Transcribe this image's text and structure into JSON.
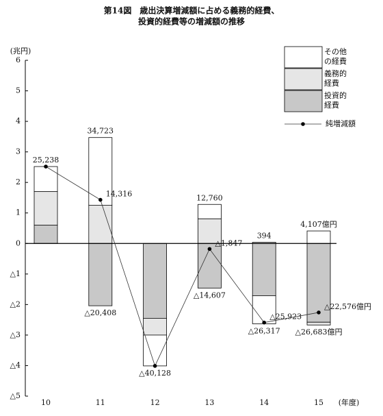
{
  "chart_data": {
    "type": "stacked-bar-line",
    "title": [
      "第14図　歳出決算増減額に占める義務的経費、",
      "投資的経費等の増減額の推移"
    ],
    "y_unit": "(兆円)",
    "x_unit": "(年度)",
    "categories": [
      "10",
      "11",
      "12",
      "13",
      "14",
      "15"
    ],
    "ylim": [
      -5,
      6
    ],
    "yticks": [
      {
        "value": -5,
        "label": "△5"
      },
      {
        "value": -4,
        "label": "△4"
      },
      {
        "value": -3,
        "label": "△3"
      },
      {
        "value": -2,
        "label": "△2"
      },
      {
        "value": -1,
        "label": "△1"
      },
      0,
      1,
      2,
      3,
      4,
      5,
      6
    ],
    "series": [
      {
        "name": "その他の経費",
        "color": "#ffffff",
        "values": [
          0.82,
          2.22,
          -1.01,
          0.47,
          -0.92,
          0.41
        ]
      },
      {
        "name": "義務的経費",
        "color": "#e6e6e6",
        "values": [
          1.1,
          1.25,
          -0.55,
          0.81,
          0.04,
          -0.09
        ]
      },
      {
        "name": "投資的経費",
        "color": "#c8c8c8",
        "values": [
          0.6,
          -2.04,
          -2.45,
          -1.46,
          -1.71,
          -2.58
        ]
      }
    ],
    "positive_totals": {
      "values": [
        2.52,
        3.47,
        null,
        1.28,
        0.04,
        0.41
      ],
      "value_labels": [
        "25,238",
        "34,723",
        null,
        "12,760",
        "394",
        "4,107億円"
      ]
    },
    "negative_totals": {
      "values": [
        null,
        -2.04,
        -4.01,
        -1.46,
        -2.63,
        -2.67
      ],
      "value_labels": [
        null,
        "△20,408",
        "△40,128",
        "△14,607",
        "△26,317",
        "△26,683億円"
      ]
    },
    "line": {
      "name": "純増減額",
      "color": "#333333",
      "values": [
        2.52,
        1.43,
        -4.01,
        -0.18,
        -2.59,
        -2.26
      ],
      "value_labels": [
        null,
        "14,316",
        null,
        "△1,847",
        "△25,923",
        "△22,576億円"
      ]
    }
  }
}
